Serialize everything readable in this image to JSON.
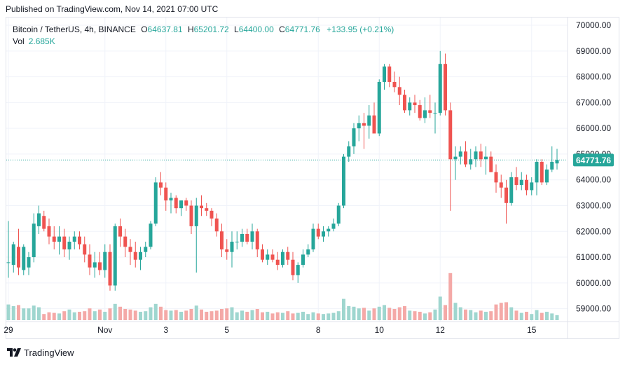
{
  "header": {
    "published": "Published on TradingView.com, Nov 14, 2021 07:00 UTC"
  },
  "legend": {
    "symbol": "Bitcoin / TetherUS, 4h, BINANCE",
    "open_label": "O",
    "open": "64637.81",
    "high_label": "H",
    "high": "65201.72",
    "low_label": "L",
    "low": "64400.00",
    "close_label": "C",
    "close": "64771.76",
    "change": "+133.95 (+0.21%)",
    "vol_label": "Vol",
    "vol_value": "2.685K"
  },
  "brand": {
    "name": "TradingView"
  },
  "colors": {
    "up": "#26a69a",
    "down": "#ef5350",
    "up_volume": "#9fd6cf",
    "down_volume": "#f4a9a7",
    "grid": "#f0f3fa",
    "price_line": "#26a69a"
  },
  "chart_data": {
    "type": "candlestick",
    "interval": "4h",
    "y_axis": {
      "side": "right",
      "ticks": [
        "70000.00",
        "69000.00",
        "68000.00",
        "67000.00",
        "66000.00",
        "65000.00",
        "64000.00",
        "63000.00",
        "62000.00",
        "61000.00",
        "60000.00",
        "59000.00"
      ],
      "range": [
        58500,
        70300
      ]
    },
    "x_axis": {
      "ticks": [
        {
          "label": "29",
          "bar": 0
        },
        {
          "label": "Nov",
          "bar": 19
        },
        {
          "label": "3",
          "bar": 31
        },
        {
          "label": "5",
          "bar": 43
        },
        {
          "label": "8",
          "bar": 61
        },
        {
          "label": "10",
          "bar": 73
        },
        {
          "label": "12",
          "bar": 85
        },
        {
          "label": "15",
          "bar": 103
        }
      ]
    },
    "last_price": "64771.76",
    "candles": [
      {
        "o": 60800,
        "h": 62400,
        "l": 60200,
        "c": 60800,
        "v": 1.4
      },
      {
        "o": 60700,
        "h": 61600,
        "l": 60400,
        "c": 61500,
        "v": 1.25
      },
      {
        "o": 61400,
        "h": 62100,
        "l": 60300,
        "c": 60600,
        "v": 1.35
      },
      {
        "o": 60500,
        "h": 61500,
        "l": 60300,
        "c": 61400,
        "v": 1.05
      },
      {
        "o": 60600,
        "h": 61200,
        "l": 60300,
        "c": 61000,
        "v": 1.05
      },
      {
        "o": 61000,
        "h": 62700,
        "l": 60800,
        "c": 62300,
        "v": 1.3
      },
      {
        "o": 62200,
        "h": 63000,
        "l": 61900,
        "c": 62700,
        "v": 1.15
      },
      {
        "o": 62600,
        "h": 62800,
        "l": 62000,
        "c": 62100,
        "v": 0.55
      },
      {
        "o": 62200,
        "h": 62500,
        "l": 61500,
        "c": 61800,
        "v": 0.7
      },
      {
        "o": 61800,
        "h": 62200,
        "l": 61300,
        "c": 61600,
        "v": 0.65
      },
      {
        "o": 61600,
        "h": 62200,
        "l": 61100,
        "c": 61800,
        "v": 0.6
      },
      {
        "o": 61800,
        "h": 62100,
        "l": 61000,
        "c": 61300,
        "v": 0.8
      },
      {
        "o": 61300,
        "h": 61800,
        "l": 60900,
        "c": 61600,
        "v": 0.95
      },
      {
        "o": 61600,
        "h": 62000,
        "l": 61300,
        "c": 61800,
        "v": 0.7
      },
      {
        "o": 61800,
        "h": 62000,
        "l": 61300,
        "c": 61500,
        "v": 0.75
      },
      {
        "o": 61500,
        "h": 61800,
        "l": 60800,
        "c": 61100,
        "v": 0.8
      },
      {
        "o": 61100,
        "h": 61500,
        "l": 60300,
        "c": 60600,
        "v": 1.05
      },
      {
        "o": 60600,
        "h": 61200,
        "l": 60200,
        "c": 60800,
        "v": 0.8
      },
      {
        "o": 60800,
        "h": 61200,
        "l": 60300,
        "c": 60500,
        "v": 0.95
      },
      {
        "o": 60500,
        "h": 61500,
        "l": 60200,
        "c": 61200,
        "v": 0.75
      },
      {
        "o": 61200,
        "h": 61500,
        "l": 59700,
        "c": 59900,
        "v": 1.05
      },
      {
        "o": 59900,
        "h": 62300,
        "l": 59700,
        "c": 62200,
        "v": 1.45
      },
      {
        "o": 62200,
        "h": 62500,
        "l": 61400,
        "c": 61800,
        "v": 1.2
      },
      {
        "o": 61800,
        "h": 62100,
        "l": 61000,
        "c": 61400,
        "v": 1.0
      },
      {
        "o": 61400,
        "h": 61700,
        "l": 60700,
        "c": 61200,
        "v": 0.95
      },
      {
        "o": 61200,
        "h": 61600,
        "l": 60600,
        "c": 60900,
        "v": 0.85
      },
      {
        "o": 60900,
        "h": 61400,
        "l": 60500,
        "c": 61200,
        "v": 0.75
      },
      {
        "o": 61200,
        "h": 61600,
        "l": 61000,
        "c": 61400,
        "v": 0.8
      },
      {
        "o": 61400,
        "h": 62400,
        "l": 61300,
        "c": 62300,
        "v": 1.15
      },
      {
        "o": 62300,
        "h": 64100,
        "l": 62200,
        "c": 63900,
        "v": 1.45
      },
      {
        "o": 63900,
        "h": 64300,
        "l": 63400,
        "c": 63700,
        "v": 1.2
      },
      {
        "o": 63700,
        "h": 63900,
        "l": 62800,
        "c": 63200,
        "v": 0.9
      },
      {
        "o": 63200,
        "h": 63500,
        "l": 62700,
        "c": 63300,
        "v": 0.85
      },
      {
        "o": 63300,
        "h": 63400,
        "l": 62700,
        "c": 62900,
        "v": 0.9
      },
      {
        "o": 62900,
        "h": 63200,
        "l": 62600,
        "c": 63200,
        "v": 0.75
      },
      {
        "o": 63200,
        "h": 63300,
        "l": 62800,
        "c": 63000,
        "v": 0.85
      },
      {
        "o": 63000,
        "h": 63200,
        "l": 61900,
        "c": 62200,
        "v": 1.0
      },
      {
        "o": 62200,
        "h": 63300,
        "l": 60400,
        "c": 63000,
        "v": 1.3
      },
      {
        "o": 63000,
        "h": 63400,
        "l": 62600,
        "c": 62900,
        "v": 0.95
      },
      {
        "o": 62900,
        "h": 63100,
        "l": 62600,
        "c": 62800,
        "v": 0.75
      },
      {
        "o": 62800,
        "h": 62900,
        "l": 62200,
        "c": 62500,
        "v": 0.8
      },
      {
        "o": 62500,
        "h": 62700,
        "l": 61800,
        "c": 62000,
        "v": 0.85
      },
      {
        "o": 62000,
        "h": 62300,
        "l": 61000,
        "c": 61300,
        "v": 1.0
      },
      {
        "o": 61300,
        "h": 61700,
        "l": 60900,
        "c": 61200,
        "v": 1.05
      },
      {
        "o": 61200,
        "h": 62000,
        "l": 60600,
        "c": 61600,
        "v": 1.15
      },
      {
        "o": 61600,
        "h": 62000,
        "l": 61300,
        "c": 61600,
        "v": 0.7
      },
      {
        "o": 61600,
        "h": 62100,
        "l": 61400,
        "c": 61900,
        "v": 0.85
      },
      {
        "o": 61900,
        "h": 62100,
        "l": 61500,
        "c": 61600,
        "v": 0.75
      },
      {
        "o": 61600,
        "h": 62300,
        "l": 61300,
        "c": 62000,
        "v": 0.9
      },
      {
        "o": 62000,
        "h": 62100,
        "l": 61000,
        "c": 61300,
        "v": 1.0
      },
      {
        "o": 61300,
        "h": 61500,
        "l": 60800,
        "c": 60900,
        "v": 0.7
      },
      {
        "o": 60900,
        "h": 61300,
        "l": 60700,
        "c": 61100,
        "v": 0.75
      },
      {
        "o": 61100,
        "h": 61300,
        "l": 60800,
        "c": 60900,
        "v": 0.6
      },
      {
        "o": 60900,
        "h": 61200,
        "l": 60500,
        "c": 60700,
        "v": 0.7
      },
      {
        "o": 60700,
        "h": 61300,
        "l": 60600,
        "c": 61200,
        "v": 0.65
      },
      {
        "o": 61200,
        "h": 61400,
        "l": 60700,
        "c": 60900,
        "v": 0.8
      },
      {
        "o": 60900,
        "h": 61200,
        "l": 60100,
        "c": 60300,
        "v": 0.6
      },
      {
        "o": 60300,
        "h": 60800,
        "l": 60000,
        "c": 60700,
        "v": 0.65
      },
      {
        "o": 60700,
        "h": 61300,
        "l": 60600,
        "c": 61100,
        "v": 0.75
      },
      {
        "o": 61100,
        "h": 61500,
        "l": 61000,
        "c": 61300,
        "v": 0.55
      },
      {
        "o": 61300,
        "h": 62300,
        "l": 61200,
        "c": 62100,
        "v": 0.7
      },
      {
        "o": 62100,
        "h": 62300,
        "l": 61700,
        "c": 61800,
        "v": 0.6
      },
      {
        "o": 61800,
        "h": 62200,
        "l": 61600,
        "c": 62000,
        "v": 0.55
      },
      {
        "o": 62000,
        "h": 62200,
        "l": 61800,
        "c": 62100,
        "v": 0.6
      },
      {
        "o": 62100,
        "h": 62500,
        "l": 62000,
        "c": 62300,
        "v": 0.65
      },
      {
        "o": 62300,
        "h": 63100,
        "l": 62200,
        "c": 63000,
        "v": 0.8
      },
      {
        "o": 63000,
        "h": 65000,
        "l": 62900,
        "c": 64900,
        "v": 1.9
      },
      {
        "o": 64900,
        "h": 65500,
        "l": 64700,
        "c": 65300,
        "v": 1.25
      },
      {
        "o": 65300,
        "h": 66200,
        "l": 65000,
        "c": 66000,
        "v": 1.2
      },
      {
        "o": 66000,
        "h": 66500,
        "l": 65500,
        "c": 66200,
        "v": 1.05
      },
      {
        "o": 66200,
        "h": 66600,
        "l": 65200,
        "c": 66100,
        "v": 1.1
      },
      {
        "o": 66100,
        "h": 66900,
        "l": 65600,
        "c": 66500,
        "v": 0.85
      },
      {
        "o": 66500,
        "h": 67000,
        "l": 65800,
        "c": 65800,
        "v": 1.05
      },
      {
        "o": 65800,
        "h": 67900,
        "l": 65700,
        "c": 67800,
        "v": 1.2
      },
      {
        "o": 67800,
        "h": 68500,
        "l": 67500,
        "c": 68400,
        "v": 1.35
      },
      {
        "o": 68400,
        "h": 68500,
        "l": 67600,
        "c": 67800,
        "v": 1.1
      },
      {
        "o": 67800,
        "h": 68200,
        "l": 67400,
        "c": 67600,
        "v": 1.0
      },
      {
        "o": 67600,
        "h": 68000,
        "l": 66900,
        "c": 67300,
        "v": 1.15
      },
      {
        "o": 67300,
        "h": 67500,
        "l": 66600,
        "c": 66700,
        "v": 1.25
      },
      {
        "o": 66700,
        "h": 67200,
        "l": 66500,
        "c": 67000,
        "v": 0.85
      },
      {
        "o": 67000,
        "h": 67300,
        "l": 66600,
        "c": 66900,
        "v": 0.8
      },
      {
        "o": 66900,
        "h": 67100,
        "l": 66300,
        "c": 66400,
        "v": 0.75
      },
      {
        "o": 66400,
        "h": 67200,
        "l": 66200,
        "c": 66700,
        "v": 0.6
      },
      {
        "o": 66700,
        "h": 67300,
        "l": 66400,
        "c": 66600,
        "v": 0.7
      },
      {
        "o": 66600,
        "h": 67000,
        "l": 65800,
        "c": 66600,
        "v": 0.95
      },
      {
        "o": 66600,
        "h": 69000,
        "l": 66500,
        "c": 68500,
        "v": 2.1
      },
      {
        "o": 68500,
        "h": 68900,
        "l": 66500,
        "c": 66700,
        "v": 1.35
      },
      {
        "o": 66700,
        "h": 67000,
        "l": 62800,
        "c": 64800,
        "v": 4.2
      },
      {
        "o": 64800,
        "h": 65300,
        "l": 64000,
        "c": 64900,
        "v": 1.55
      },
      {
        "o": 64900,
        "h": 65300,
        "l": 64600,
        "c": 65100,
        "v": 1.15
      },
      {
        "o": 65100,
        "h": 65500,
        "l": 64500,
        "c": 64600,
        "v": 0.95
      },
      {
        "o": 64600,
        "h": 65200,
        "l": 64400,
        "c": 64800,
        "v": 0.9
      },
      {
        "o": 64800,
        "h": 65300,
        "l": 64500,
        "c": 65100,
        "v": 0.7
      },
      {
        "o": 65100,
        "h": 65400,
        "l": 64500,
        "c": 64800,
        "v": 0.85
      },
      {
        "o": 64800,
        "h": 65300,
        "l": 64200,
        "c": 64900,
        "v": 0.75
      },
      {
        "o": 64900,
        "h": 65100,
        "l": 64300,
        "c": 64300,
        "v": 0.8
      },
      {
        "o": 64300,
        "h": 64600,
        "l": 63500,
        "c": 63900,
        "v": 1.4
      },
      {
        "o": 63900,
        "h": 64200,
        "l": 63300,
        "c": 63700,
        "v": 1.55
      },
      {
        "o": 63700,
        "h": 64000,
        "l": 62300,
        "c": 63100,
        "v": 1.6
      },
      {
        "o": 63100,
        "h": 64300,
        "l": 63000,
        "c": 64100,
        "v": 1.15
      },
      {
        "o": 64100,
        "h": 64500,
        "l": 63600,
        "c": 63800,
        "v": 0.85
      },
      {
        "o": 63800,
        "h": 64300,
        "l": 63600,
        "c": 64000,
        "v": 0.65
      },
      {
        "o": 64000,
        "h": 64200,
        "l": 63400,
        "c": 63600,
        "v": 0.75
      },
      {
        "o": 63600,
        "h": 64100,
        "l": 63400,
        "c": 63900,
        "v": 0.55
      },
      {
        "o": 63900,
        "h": 64800,
        "l": 63400,
        "c": 64700,
        "v": 0.9
      },
      {
        "o": 64700,
        "h": 64800,
        "l": 63800,
        "c": 63900,
        "v": 0.65
      },
      {
        "o": 63900,
        "h": 64600,
        "l": 63800,
        "c": 64400,
        "v": 0.75
      },
      {
        "o": 64400,
        "h": 65300,
        "l": 64300,
        "c": 64700,
        "v": 0.6
      },
      {
        "o": 64637.81,
        "h": 65201.72,
        "l": 64400,
        "c": 64771.76,
        "v": 0.45
      }
    ]
  }
}
